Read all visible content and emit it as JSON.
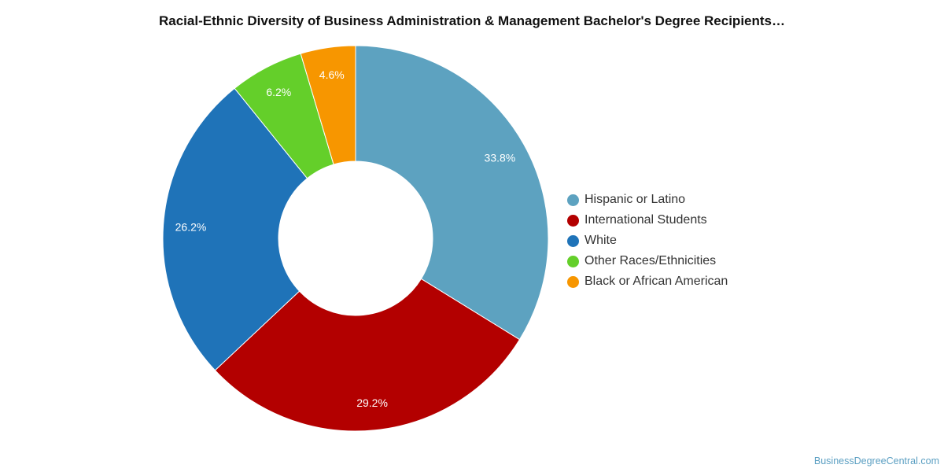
{
  "chart_data": {
    "type": "pie",
    "variant": "donut",
    "title": "Racial-Ethnic Diversity of Business Administration & Management Bachelor's Degree Recipients…",
    "categories": [
      "Hispanic or Latino",
      "International Students",
      "White",
      "Other Races/Ethnicities",
      "Black or African American"
    ],
    "values": [
      33.8,
      29.2,
      26.2,
      6.2,
      4.6
    ],
    "value_labels": [
      "33.8%",
      "29.2%",
      "26.2%",
      "6.2%",
      "4.6%"
    ],
    "colors": [
      "#5da2c0",
      "#b30000",
      "#1f73b8",
      "#64cf2a",
      "#f79600"
    ],
    "legend_position": "right",
    "start_angle": "top, clockwise"
  },
  "source": "BusinessDegreeCentral.com"
}
